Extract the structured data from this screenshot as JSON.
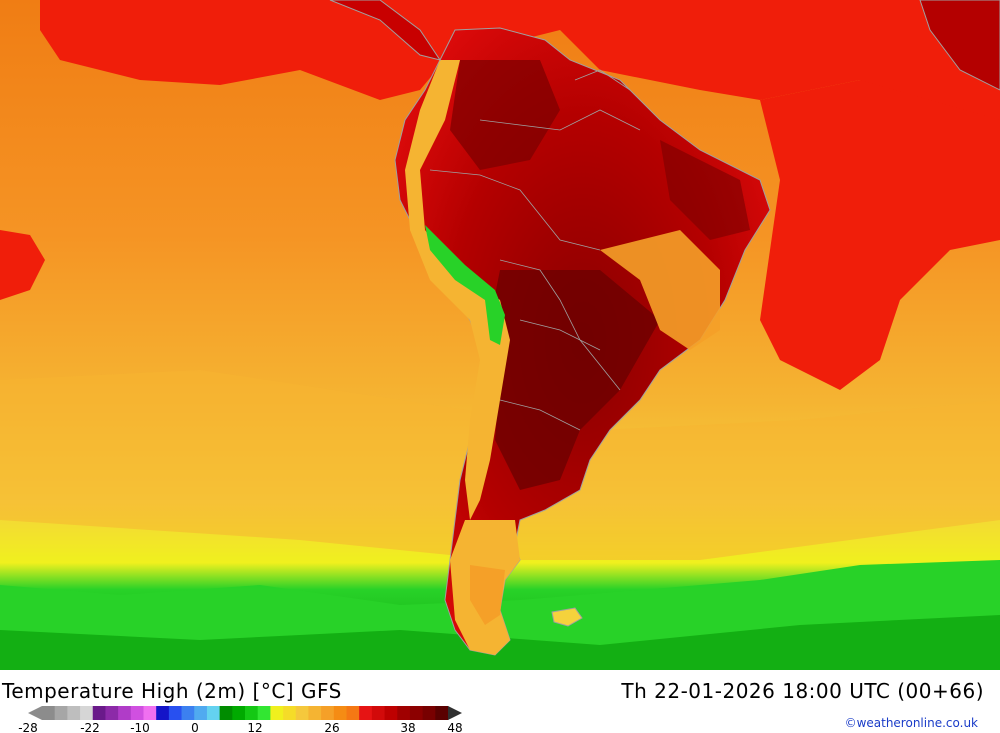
{
  "map": {
    "title": "Temperature High (2m) [°C] GFS",
    "valid_time": "Th 22-01-2026 18:00 UTC (00+66)",
    "credit": "©weatheronline.co.uk",
    "region": "South America"
  },
  "legend": {
    "tick_labels": [
      "-28",
      "-22",
      "-10",
      "0",
      "12",
      "26",
      "38",
      "48"
    ],
    "colors": [
      "#8c8c8c",
      "#a6a6a6",
      "#bebebe",
      "#d6d6d6",
      "#6a1a8a",
      "#8c2aa8",
      "#b03cc8",
      "#d050e0",
      "#f070f0",
      "#1414c8",
      "#2850f0",
      "#3c80f0",
      "#50aaf0",
      "#64d2f0",
      "#008c00",
      "#00aa00",
      "#14c814",
      "#32e632",
      "#f0f01e",
      "#f5dc28",
      "#f5c83c",
      "#f5b432",
      "#f5a028",
      "#f58c14",
      "#f57814",
      "#e61414",
      "#d20a0a",
      "#be0000",
      "#a00000",
      "#8c0000",
      "#780000",
      "#5a0000"
    ],
    "arrow_color": "#303030"
  },
  "colors": {
    "ocean_far": "#f08c1e",
    "ocean_mid": "#f5a528",
    "ocean_cool": "#f5d23c",
    "yellow_band": "#f0f01e",
    "green_south": "#1ed21e",
    "green_deep": "#0aa00a",
    "warm_red": "#f01e0a",
    "land_hot": "#b40000",
    "land_hottest": "#7a0000",
    "border": "#a0a0a0"
  }
}
